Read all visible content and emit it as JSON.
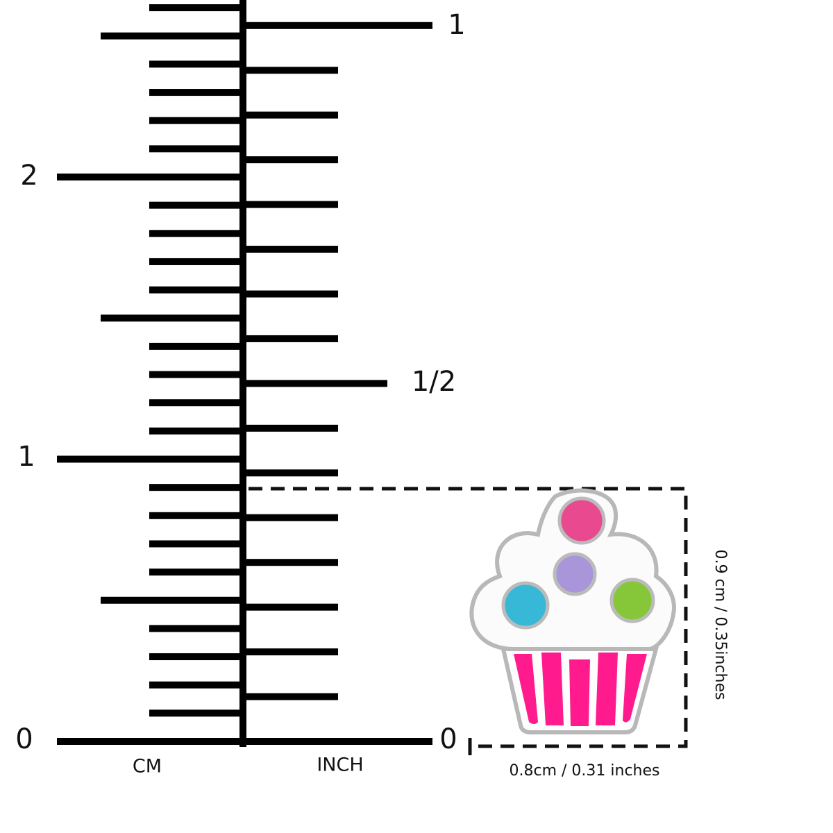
{
  "ruler": {
    "cm": {
      "unit": "CM",
      "labels": [
        "0",
        "1",
        "2"
      ]
    },
    "inch": {
      "unit": "INCH",
      "labels": [
        "0",
        "1/2",
        "1"
      ]
    }
  },
  "product": {
    "height": "0.9 cm / 0.35inches",
    "width": "0.8cm / 0.31 inches"
  }
}
